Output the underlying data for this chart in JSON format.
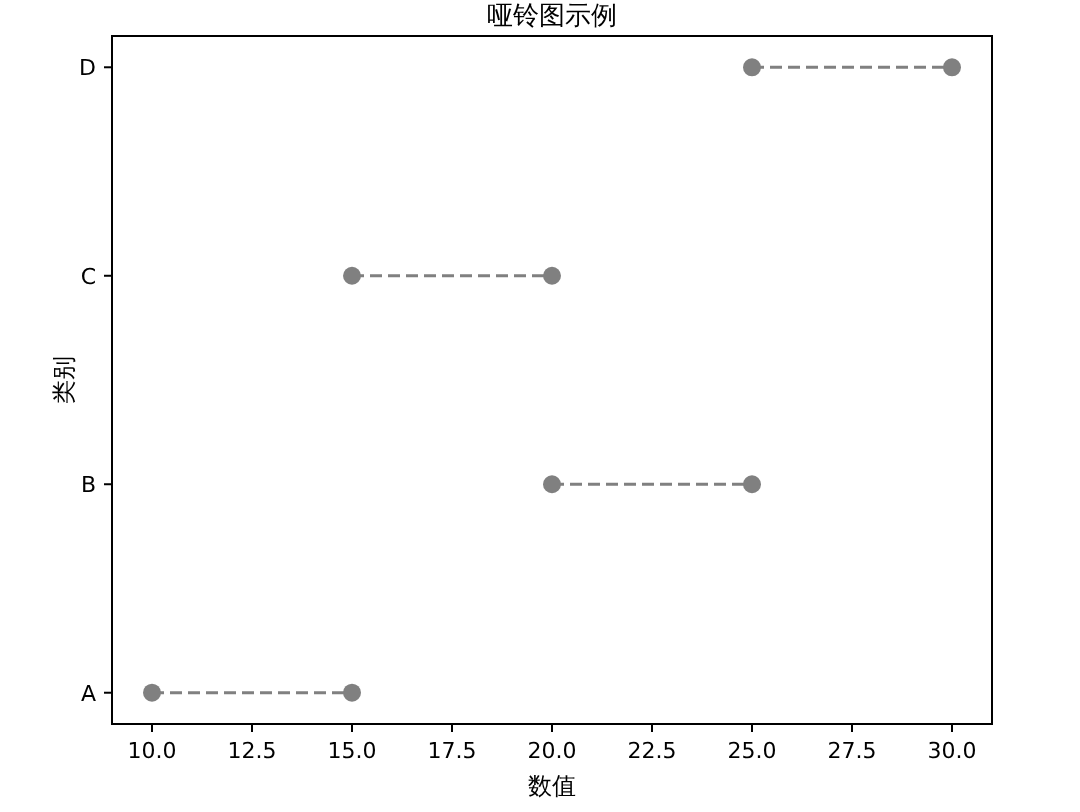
{
  "chart_data": {
    "type": "scatter",
    "orientation": "horizontal",
    "title": "哑铃图示例",
    "xlabel": "数值",
    "ylabel": "类别",
    "categories": [
      "D",
      "C",
      "B",
      "A"
    ],
    "series": [
      {
        "color": "#808080",
        "values": [
          25,
          15,
          20,
          10
        ]
      },
      {
        "color": "#808080",
        "values": [
          30,
          20,
          25,
          15
        ]
      }
    ],
    "marker": "circle",
    "line_style": "dashed",
    "xlim": [
      9,
      31
    ],
    "xticks": [
      {
        "value": 10,
        "label": "10.0"
      },
      {
        "value": 12.5,
        "label": "12.5"
      },
      {
        "value": 15,
        "label": "15.0"
      },
      {
        "value": 17.5,
        "label": "17.5"
      },
      {
        "value": 20,
        "label": "20.0"
      },
      {
        "value": 22.5,
        "label": "22.5"
      },
      {
        "value": 25,
        "label": "25.0"
      },
      {
        "value": 27.5,
        "label": "27.5"
      },
      {
        "value": 30,
        "label": "30.0"
      }
    ]
  }
}
